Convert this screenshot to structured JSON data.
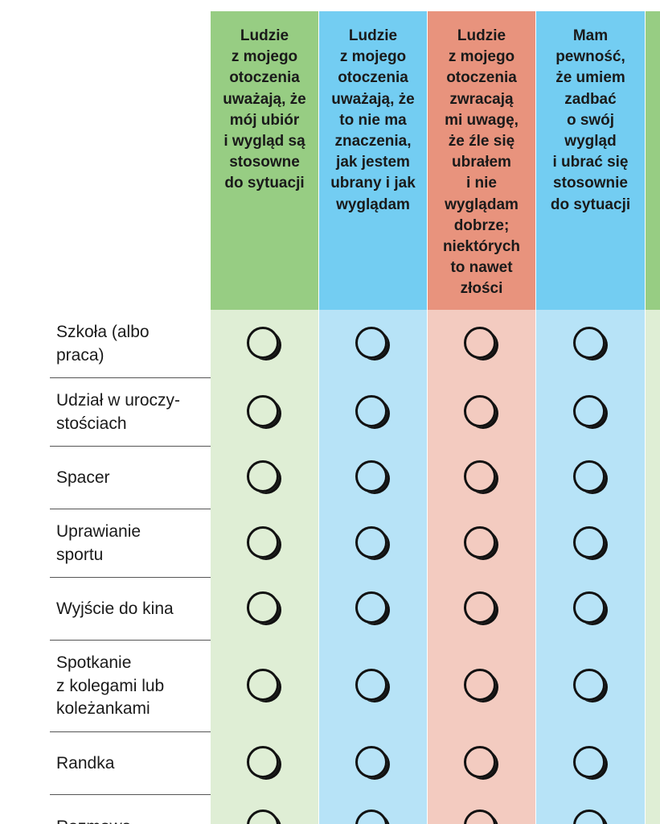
{
  "columns": [
    {
      "id": "c1",
      "color_header": "#97cd83",
      "color_body": "#dfeed5",
      "label": "Ludzie\nz mojego\notoczenia\nuważają, że\nmój ubiór\ni wygląd są\nstosowne\ndo sytuacji"
    },
    {
      "id": "c2",
      "color_header": "#73cdf2",
      "color_body": "#b7e3f7",
      "label": "Ludzie\nz mojego\notoczenia\nuważają, że\nto nie ma\nznaczenia,\njak jestem\nubrany i jak\nwyglądam"
    },
    {
      "id": "c3",
      "color_header": "#e8937d",
      "color_body": "#f3cbc0",
      "label": "Ludzie\nz mojego\notoczenia\nzwracają\nmi uwagę,\nże źle się\nubrałem\ni nie\nwyglądam\ndobrze;\nniektórych\nto nawet\nzłości"
    },
    {
      "id": "c4",
      "color_header": "#73cdf2",
      "color_body": "#b7e3f7",
      "label": "Mam\npewność,\nże umiem\nzadbać\no swój\nwygląd\ni ubrać się\nstosownie\ndo sytuacji"
    },
    {
      "id": "c5",
      "color_header": "#97cd83",
      "color_body": "#dfeed5",
      "label": ""
    }
  ],
  "rows": [
    {
      "label": "Szkoła (albo\npraca)"
    },
    {
      "label": "Udział w uroczy-\nstościach"
    },
    {
      "label": "Spacer"
    },
    {
      "label": "Uprawianie\nsportu"
    },
    {
      "label": "Wyjście do kina"
    },
    {
      "label": "Spotkanie\nz kolegami lub\nkoleżankami"
    },
    {
      "label": "Randka"
    },
    {
      "label": "Rozmowa"
    }
  ]
}
